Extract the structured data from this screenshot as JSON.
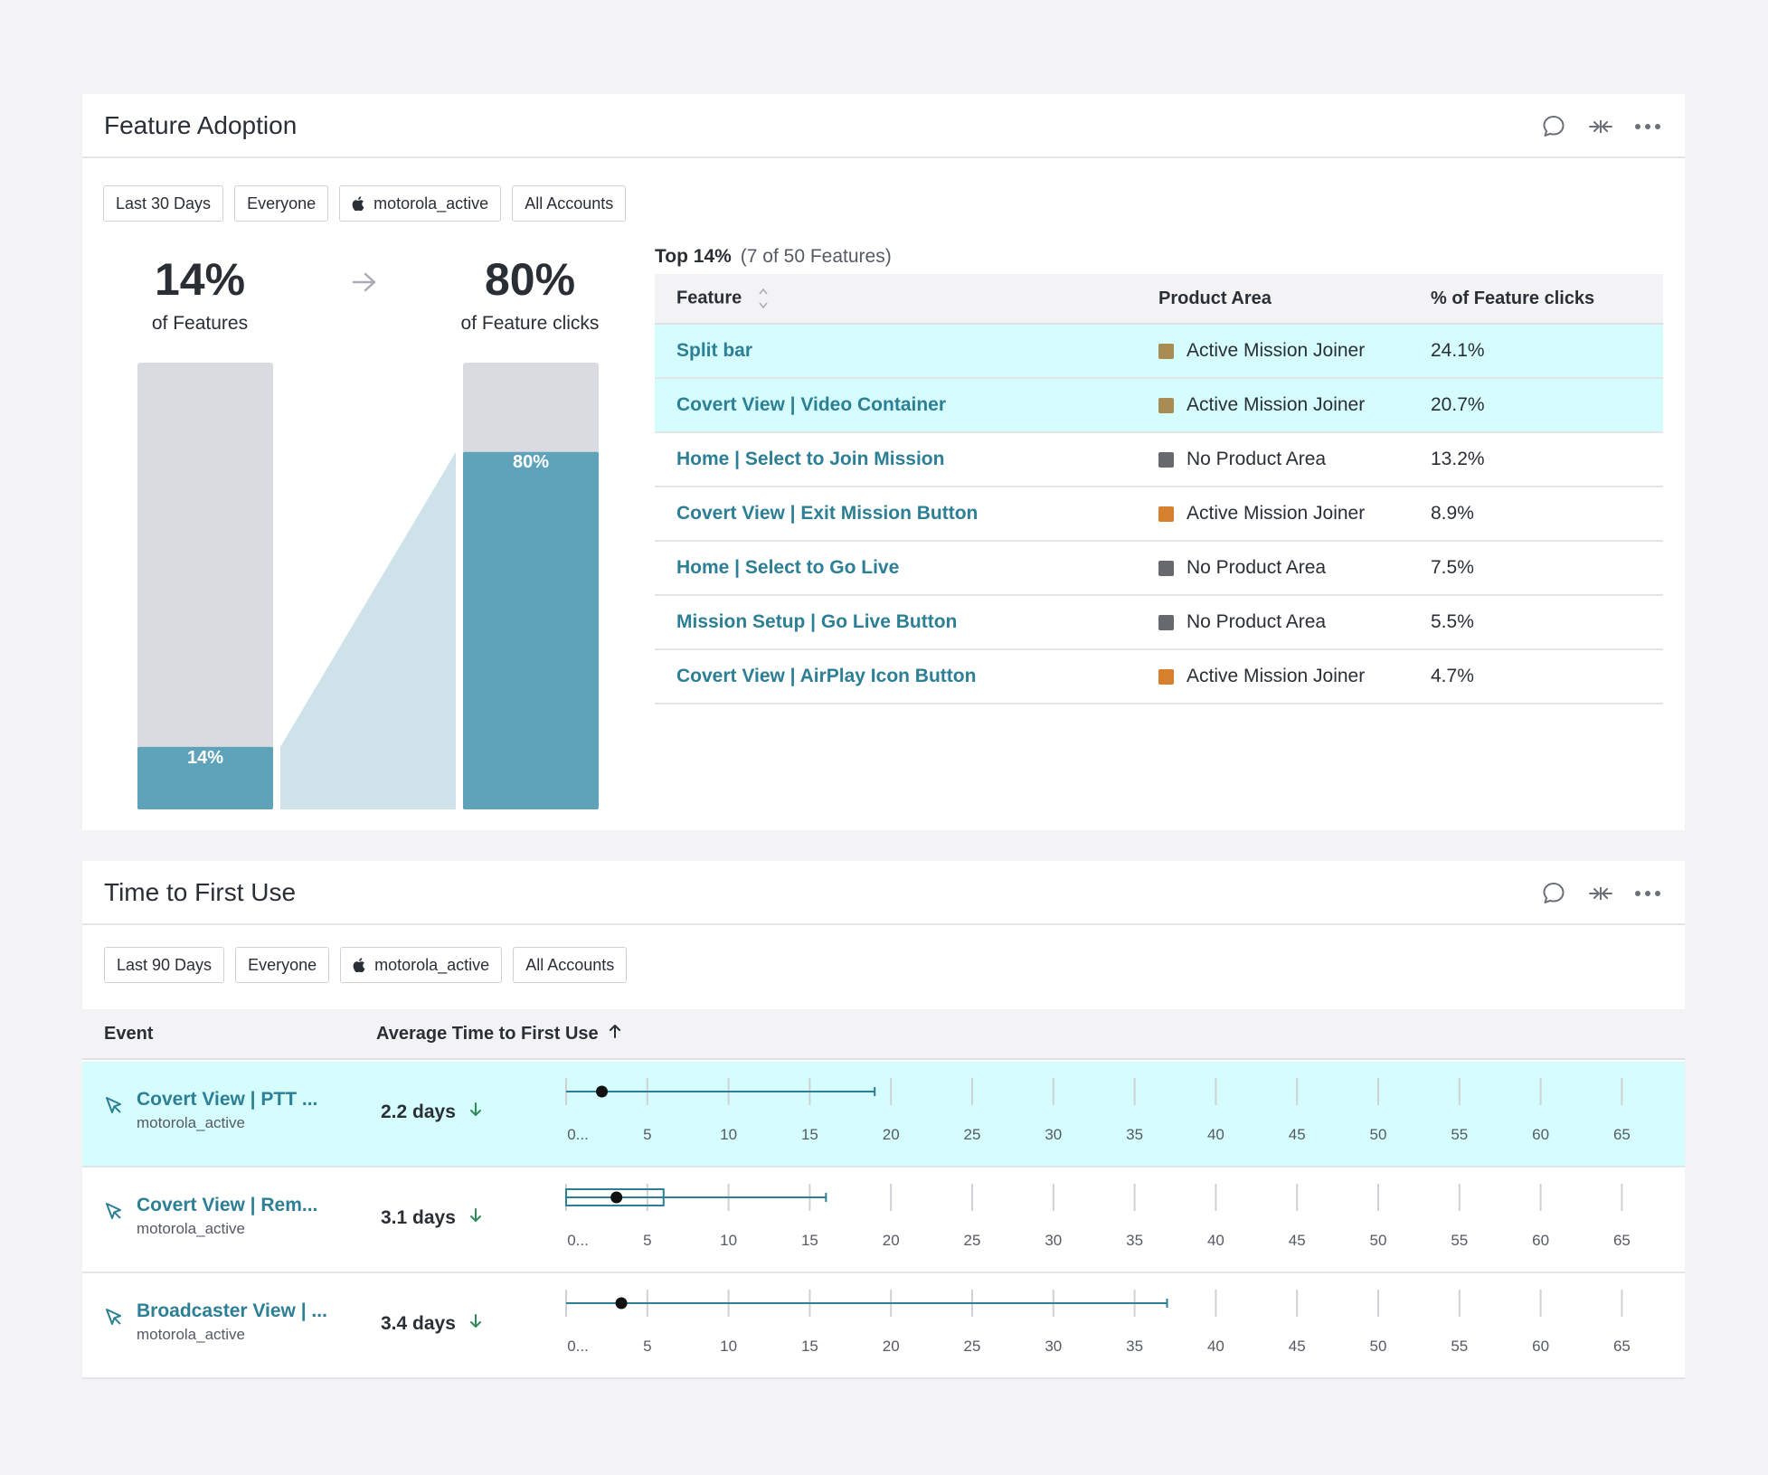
{
  "feature_adoption": {
    "title": "Feature Adoption",
    "filters": [
      "Last 30 Days",
      "Everyone",
      "motorola_active",
      "All Accounts"
    ],
    "left_stat": {
      "value": "14%",
      "label": "of Features"
    },
    "right_stat": {
      "value": "80%",
      "label": "of Feature clicks"
    },
    "bar_left_label": "14%",
    "bar_right_label": "80%",
    "bar_left_fraction": 0.14,
    "bar_right_fraction": 0.8,
    "top_caption_bold": "Top 14%",
    "top_caption_muted": "(7 of 50 Features)",
    "columns": [
      "Feature",
      "Product Area",
      "% of Feature clicks"
    ],
    "rows": [
      {
        "feature": "Split bar",
        "area": "Active Mission Joiner",
        "color": "#a88c54",
        "pct": "24.1%",
        "highlight": true
      },
      {
        "feature": "Covert View | Video Container",
        "area": "Active Mission Joiner",
        "color": "#a88c54",
        "pct": "20.7%",
        "highlight": true
      },
      {
        "feature": "Home | Select to Join Mission",
        "area": "No Product Area",
        "color": "#67696f",
        "pct": "13.2%",
        "highlight": false
      },
      {
        "feature": "Covert View | Exit Mission Button",
        "area": "Active Mission Joiner",
        "color": "#d67f2c",
        "pct": "8.9%",
        "highlight": false
      },
      {
        "feature": "Home | Select to Go Live",
        "area": "No Product Area",
        "color": "#67696f",
        "pct": "7.5%",
        "highlight": false
      },
      {
        "feature": "Mission Setup | Go Live Button",
        "area": "No Product Area",
        "color": "#67696f",
        "pct": "5.5%",
        "highlight": false
      },
      {
        "feature": "Covert View | AirPlay Icon Button",
        "area": "Active Mission Joiner",
        "color": "#d67f2c",
        "pct": "4.7%",
        "highlight": false
      }
    ]
  },
  "time_to_first_use": {
    "title": "Time to First Use",
    "filters": [
      "Last 90 Days",
      "Everyone",
      "motorola_active",
      "All Accounts"
    ],
    "columns": {
      "event": "Event",
      "avg": "Average Time to First Use"
    },
    "axis_ticks": [
      "0...",
      "5",
      "10",
      "15",
      "20",
      "25",
      "30",
      "35",
      "40",
      "45",
      "50",
      "55",
      "60",
      "65"
    ],
    "axis_values": [
      0,
      5,
      10,
      15,
      20,
      25,
      30,
      35,
      40,
      45,
      50,
      55,
      60,
      65
    ],
    "rows": [
      {
        "name": "Covert View | PTT ...",
        "sub": "motorola_active",
        "days": "2.2 days",
        "highlight": true,
        "mean": 2.2,
        "whisker_min": 0,
        "whisker_max": 19,
        "box": null
      },
      {
        "name": "Covert View | Rem...",
        "sub": "motorola_active",
        "days": "3.1 days",
        "highlight": false,
        "mean": 3.1,
        "whisker_min": 0,
        "whisker_max": 16,
        "box": [
          0,
          6
        ]
      },
      {
        "name": "Broadcaster View | ...",
        "sub": "motorola_active",
        "days": "3.4 days",
        "highlight": false,
        "mean": 3.4,
        "whisker_min": 0,
        "whisker_max": 37,
        "box": null
      }
    ]
  },
  "colors": {
    "teal": "#5fa3bb",
    "teal_light": "#cde3e9",
    "bar_bg": "#dadbe1",
    "link": "#2c7f94",
    "highlight": "#d6fdfd",
    "down_arrow": "#2e8a57"
  }
}
